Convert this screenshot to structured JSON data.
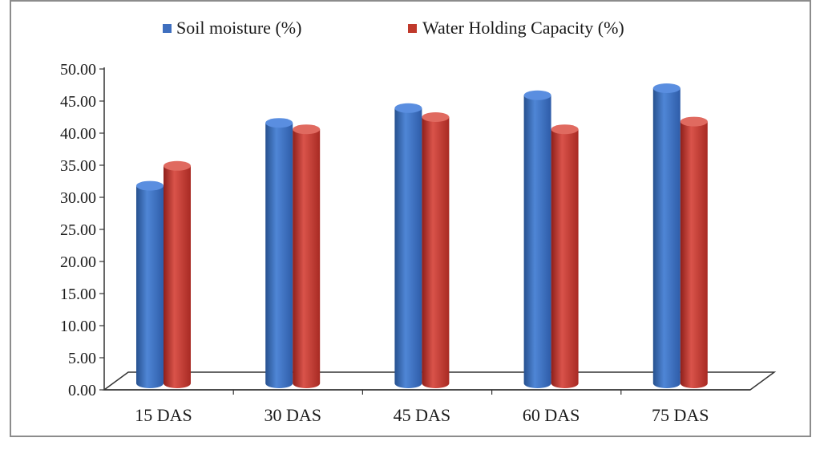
{
  "chart_data": {
    "type": "bar",
    "categories": [
      "15 DAS",
      "30 DAS",
      "45 DAS",
      "60 DAS",
      "75 DAS"
    ],
    "series": [
      {
        "name": "Soil moisture (%)",
        "values": [
          31.8,
          41.6,
          43.9,
          45.9,
          47.0
        ],
        "color": "#3f6fbf"
      },
      {
        "name": "Water Holding Capacity (%)",
        "values": [
          34.9,
          40.6,
          42.5,
          40.6,
          41.8
        ],
        "color": "#c0392b"
      }
    ],
    "yticks": [
      "0.00",
      "5.00",
      "10.00",
      "15.00",
      "20.00",
      "25.00",
      "30.00",
      "35.00",
      "40.00",
      "45.00",
      "50.00"
    ],
    "ylim": [
      0,
      50
    ],
    "grid": false,
    "legend_position": "top-center"
  }
}
